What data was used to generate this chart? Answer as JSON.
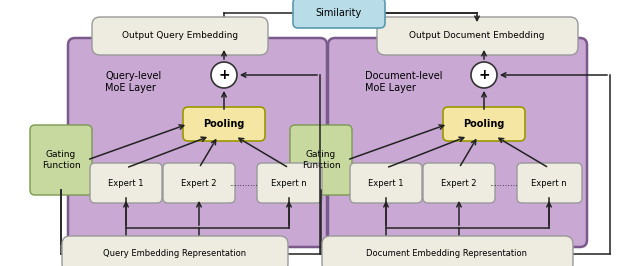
{
  "fig_width": 6.4,
  "fig_height": 2.66,
  "dpi": 100,
  "bg_color": "#ffffff",
  "purple_box_color": "#c9a8d4",
  "purple_box_edge": "#7a5a8a",
  "yellow_box_color": "#f5e6a3",
  "yellow_box_edge": "#999900",
  "green_box_color": "#c8d9a0",
  "green_box_edge": "#7a9a50",
  "cream_box_color": "#eeece1",
  "cream_box_edge": "#999999",
  "blue_box_color": "#b8dde8",
  "blue_box_edge": "#5a9ab0",
  "circle_color": "#ffffff",
  "circle_edge": "#333333",
  "arrow_color": "#222222",
  "similarity_label": "Similarity",
  "output_query_label": "Output Query Embedding",
  "output_doc_label": "Output Document Embedding",
  "query_rep_label": "Query Embedding Representation",
  "doc_rep_label": "Document Embedding Representation",
  "query_moe_label": "Query-level\nMoE Layer",
  "doc_moe_label": "Document-level\nMoE Layer",
  "pooling_label": "Pooling",
  "gating_label": "Gating\nFunction",
  "expert1_label": "Expert 1",
  "expert2_label": "Expert 2",
  "dots_label": "...........",
  "expertn_label": "Expert n",
  "plus_label": "+"
}
